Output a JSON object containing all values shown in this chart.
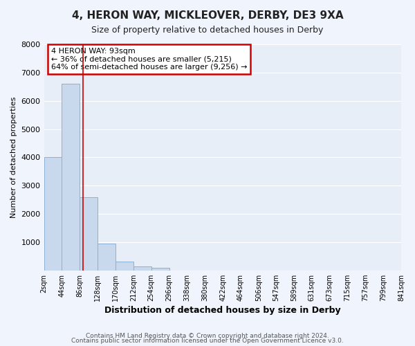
{
  "title": "4, HERON WAY, MICKLEOVER, DERBY, DE3 9XA",
  "subtitle": "Size of property relative to detached houses in Derby",
  "xlabel": "Distribution of detached houses by size in Derby",
  "ylabel": "Number of detached properties",
  "bar_color": "#c8d9ee",
  "bar_edge_color": "#8ab0d4",
  "background_color": "#e8eef8",
  "grid_color": "#ffffff",
  "bin_edges": [
    2,
    44,
    86,
    128,
    170,
    212,
    254,
    296,
    338,
    380,
    422,
    464,
    506,
    547,
    589,
    631,
    673,
    715,
    757,
    799,
    841
  ],
  "bin_labels": [
    "2sqm",
    "44sqm",
    "86sqm",
    "128sqm",
    "170sqm",
    "212sqm",
    "254sqm",
    "296sqm",
    "338sqm",
    "380sqm",
    "422sqm",
    "464sqm",
    "506sqm",
    "547sqm",
    "589sqm",
    "631sqm",
    "673sqm",
    "715sqm",
    "757sqm",
    "799sqm",
    "841sqm"
  ],
  "counts": [
    4000,
    6600,
    2600,
    950,
    320,
    130,
    80,
    0,
    0,
    0,
    0,
    0,
    0,
    0,
    0,
    0,
    0,
    0,
    0,
    0
  ],
  "red_line_x": 93,
  "annotation_line1": "4 HERON WAY: 93sqm",
  "annotation_line2": "← 36% of detached houses are smaller (5,215)",
  "annotation_line3": "64% of semi-detached houses are larger (9,256) →",
  "annotation_box_color": "#ffffff",
  "annotation_box_edge": "#cc0000",
  "ylim": [
    0,
    8000
  ],
  "yticks": [
    0,
    1000,
    2000,
    3000,
    4000,
    5000,
    6000,
    7000,
    8000
  ],
  "footer_line1": "Contains HM Land Registry data © Crown copyright and database right 2024.",
  "footer_line2": "Contains public sector information licensed under the Open Government Licence v3.0.",
  "fig_bg": "#f0f4fc"
}
